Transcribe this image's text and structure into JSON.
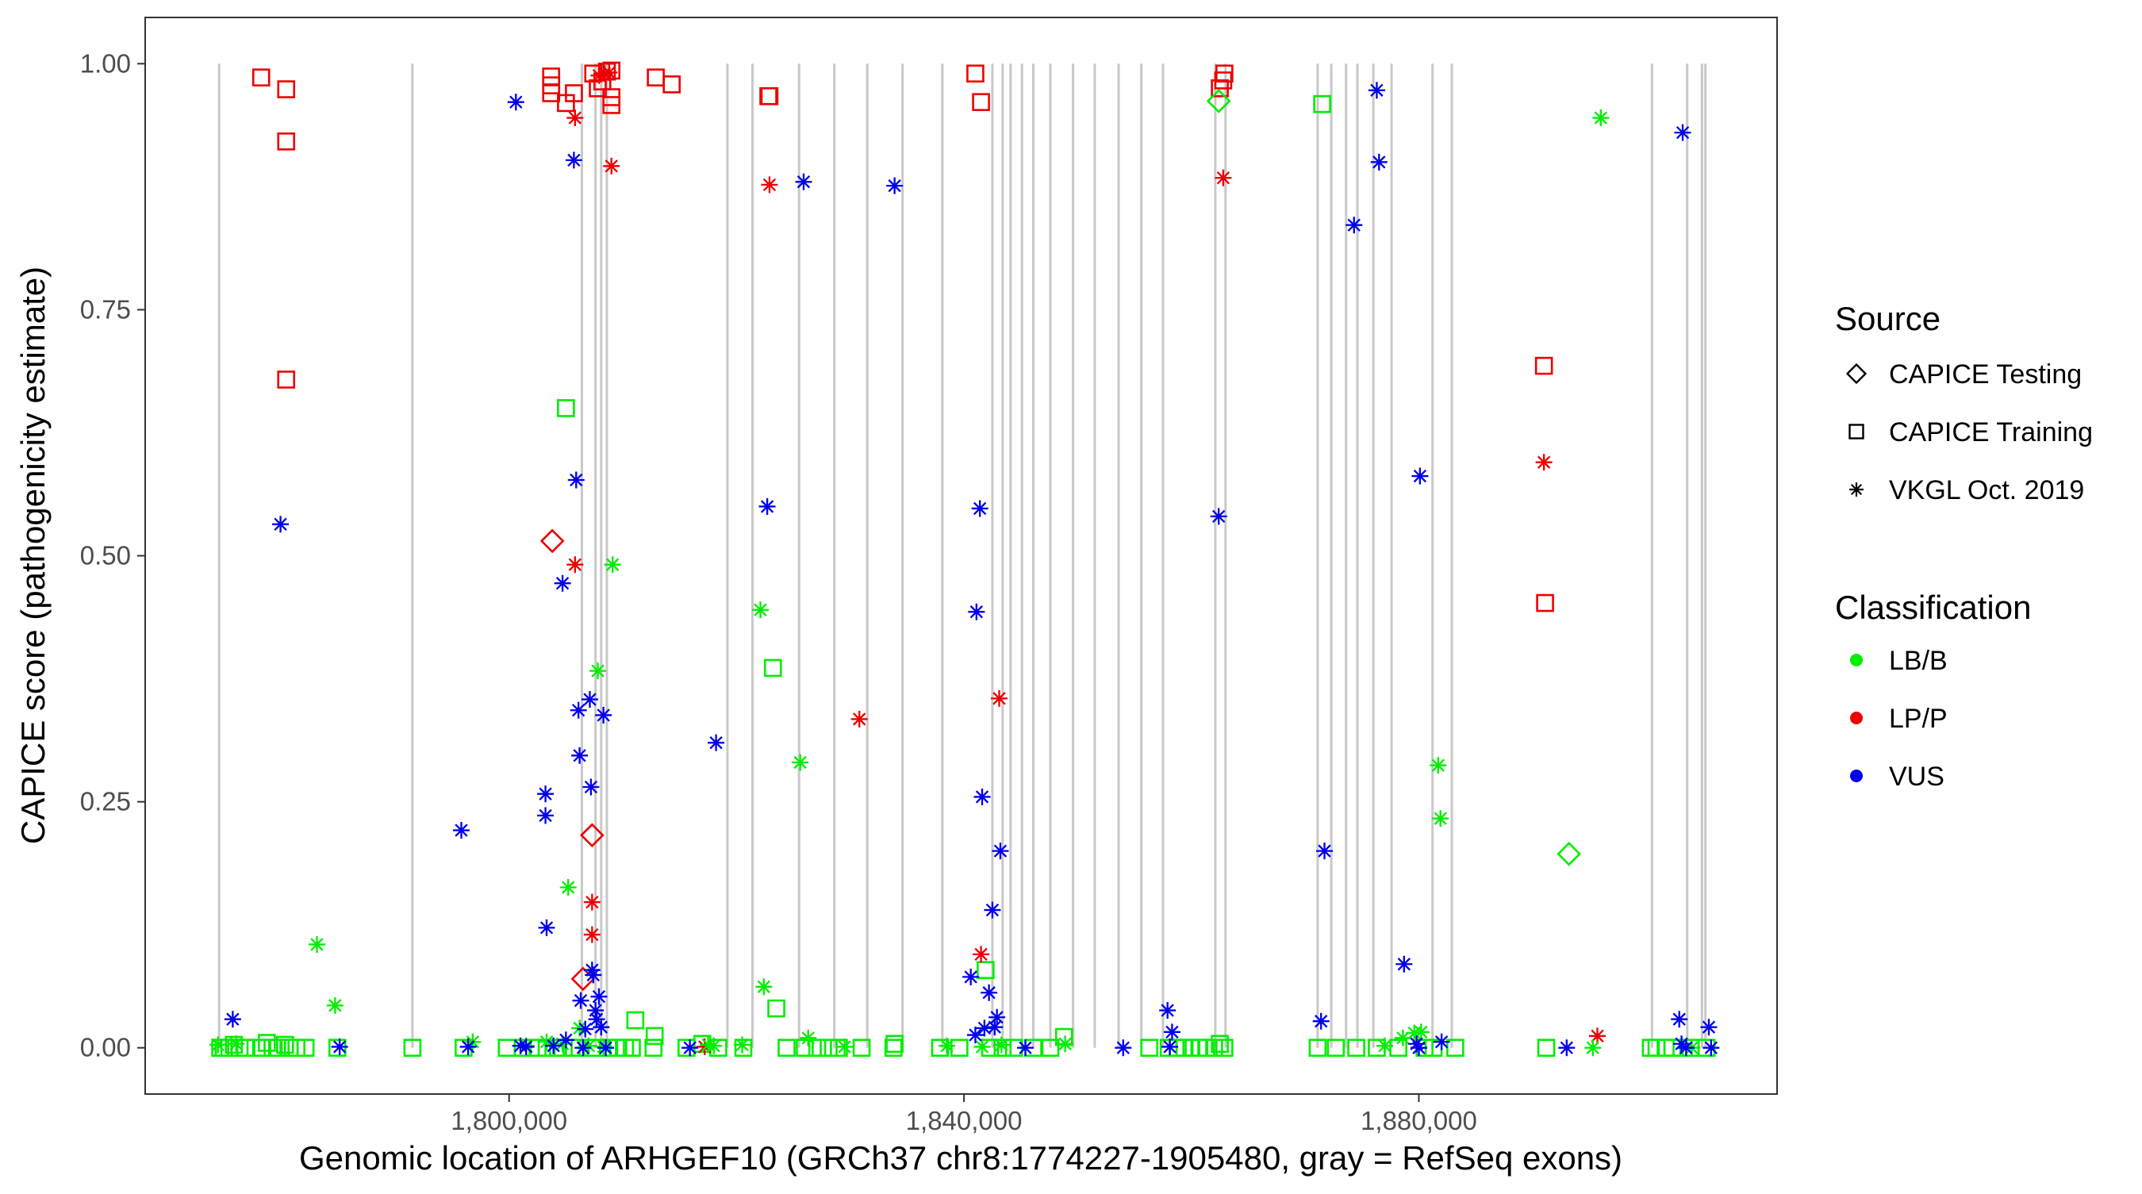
{
  "chart_data": {
    "type": "scatter",
    "title": "",
    "xlabel": "Genomic location of ARHGEF10 (GRCh37 chr8:1774227-1905480, gray = RefSeq exons)",
    "ylabel": "CAPICE score (pathogenicity estimate)",
    "xlim": [
      1768000,
      1911500
    ],
    "ylim": [
      -0.047,
      1.047
    ],
    "x_ticks": [
      1800000,
      1840000,
      1880000
    ],
    "x_tick_labels": [
      "1,800,000",
      "1,840,000",
      "1,880,000"
    ],
    "y_ticks": [
      0.0,
      0.25,
      0.5,
      0.75,
      1.0
    ],
    "y_tick_labels": [
      "0.00",
      "0.25",
      "0.50",
      "0.75",
      "1.00"
    ],
    "grid": false,
    "exon_color": "#c8c8c8",
    "exons": [
      1774500,
      1791500,
      1806400,
      1807600,
      1808100,
      1808600,
      1819200,
      1821400,
      1825500,
      1828600,
      1831500,
      1834600,
      1838100,
      1842500,
      1843400,
      1844100,
      1845100,
      1846100,
      1847600,
      1849600,
      1851500,
      1853600,
      1855600,
      1857500,
      1862100,
      1863000,
      1871100,
      1872300,
      1873600,
      1874600,
      1876000,
      1877600,
      1881200,
      1882900,
      1900500,
      1903600,
      1904900,
      1905200
    ],
    "legend": {
      "placement": "right",
      "source_title": "Source",
      "source_entries": [
        {
          "label": "CAPICE Testing",
          "shape": "diamond"
        },
        {
          "label": "CAPICE Training",
          "shape": "square"
        },
        {
          "label": "VKGL Oct. 2019",
          "shape": "asterisk"
        }
      ],
      "class_title": "Classification",
      "class_entries": [
        {
          "label": "LB/B",
          "color": "#00ee00"
        },
        {
          "label": "LP/P",
          "color": "#ee0000"
        },
        {
          "label": "VUS",
          "color": "#0000ee"
        }
      ]
    },
    "series": [
      {
        "source": "CAPICE Training",
        "shape": "square",
        "classification": "LP/P",
        "color": "#ee0000",
        "points": [
          [
            1778200,
            0.986
          ],
          [
            1780400,
            0.974
          ],
          [
            1780400,
            0.921
          ],
          [
            1780400,
            0.679
          ],
          [
            1803700,
            0.987
          ],
          [
            1803700,
            0.978
          ],
          [
            1803700,
            0.97
          ],
          [
            1805000,
            0.96
          ],
          [
            1805700,
            0.97
          ],
          [
            1807400,
            0.99
          ],
          [
            1807800,
            0.975
          ],
          [
            1808200,
            0.982
          ],
          [
            1808600,
            0.992
          ],
          [
            1809000,
            0.993
          ],
          [
            1809000,
            0.966
          ],
          [
            1809000,
            0.958
          ],
          [
            1812900,
            0.986
          ],
          [
            1814300,
            0.979
          ],
          [
            1822800,
            0.967
          ],
          [
            1822900,
            0.967
          ],
          [
            1841000,
            0.99
          ],
          [
            1841500,
            0.961
          ],
          [
            1862500,
            0.975
          ],
          [
            1862800,
            0.983
          ],
          [
            1862900,
            0.99
          ],
          [
            1891000,
            0.693
          ],
          [
            1891100,
            0.452
          ]
        ]
      },
      {
        "source": "CAPICE Training",
        "shape": "square",
        "classification": "LB/B",
        "color": "#00ee00",
        "points": [
          [
            1774600,
            0.0
          ],
          [
            1774900,
            0.0
          ],
          [
            1775400,
            0.0
          ],
          [
            1775800,
            0.003
          ],
          [
            1776300,
            0.0
          ],
          [
            1776800,
            0.0
          ],
          [
            1778300,
            0.0
          ],
          [
            1778700,
            0.005
          ],
          [
            1779200,
            0.0
          ],
          [
            1779600,
            0.0
          ],
          [
            1780300,
            0.003
          ],
          [
            1780700,
            0.0
          ],
          [
            1781300,
            0.0
          ],
          [
            1782100,
            0.0
          ],
          [
            1784900,
            0.0
          ],
          [
            1791500,
            0.0
          ],
          [
            1796000,
            0.0
          ],
          [
            1799800,
            0.0
          ],
          [
            1801200,
            0.0
          ],
          [
            1802500,
            0.0
          ],
          [
            1803300,
            0.0
          ],
          [
            1804300,
            0.0
          ],
          [
            1805000,
            0.65
          ],
          [
            1805500,
            0.0
          ],
          [
            1806200,
            0.0
          ],
          [
            1807300,
            0.0
          ],
          [
            1808700,
            0.0
          ],
          [
            1809600,
            0.0
          ],
          [
            1810200,
            0.0
          ],
          [
            1810800,
            0.0
          ],
          [
            1811100,
            0.028
          ],
          [
            1812700,
            0.0
          ],
          [
            1812800,
            0.012
          ],
          [
            1815600,
            0.0
          ],
          [
            1817000,
            0.004
          ],
          [
            1818400,
            0.0
          ],
          [
            1820600,
            0.0
          ],
          [
            1823200,
            0.386
          ],
          [
            1823500,
            0.04
          ],
          [
            1824400,
            0.0
          ],
          [
            1826000,
            0.0
          ],
          [
            1827100,
            0.0
          ],
          [
            1828100,
            0.0
          ],
          [
            1829000,
            0.0
          ],
          [
            1831000,
            0.0
          ],
          [
            1833800,
            0.0
          ],
          [
            1833900,
            0.004
          ],
          [
            1837900,
            0.0
          ],
          [
            1839600,
            0.0
          ],
          [
            1841900,
            0.079
          ],
          [
            1842300,
            0.0
          ],
          [
            1843400,
            0.0
          ],
          [
            1844400,
            0.0
          ],
          [
            1846100,
            0.0
          ],
          [
            1847600,
            0.0
          ],
          [
            1848800,
            0.011
          ],
          [
            1856300,
            0.0
          ],
          [
            1858000,
            0.0
          ],
          [
            1858800,
            0.0
          ],
          [
            1859400,
            0.0
          ],
          [
            1860000,
            0.0
          ],
          [
            1860700,
            0.0
          ],
          [
            1861300,
            0.0
          ],
          [
            1862000,
            0.0
          ],
          [
            1862500,
            0.004
          ],
          [
            1862900,
            0.0
          ],
          [
            1871100,
            0.0
          ],
          [
            1871500,
            0.959
          ],
          [
            1872700,
            0.0
          ],
          [
            1874500,
            0.0
          ],
          [
            1876300,
            0.0
          ],
          [
            1878200,
            0.0
          ],
          [
            1880500,
            0.0
          ],
          [
            1881300,
            0.0
          ],
          [
            1883200,
            0.0
          ],
          [
            1891200,
            0.0
          ],
          [
            1900400,
            0.0
          ],
          [
            1900900,
            0.0
          ],
          [
            1901700,
            0.0
          ],
          [
            1902300,
            0.0
          ],
          [
            1903900,
            0.0
          ],
          [
            1905300,
            0.0
          ]
        ]
      },
      {
        "source": "CAPICE Testing",
        "shape": "diamond",
        "classification": "LP/P",
        "color": "#ee0000",
        "points": [
          [
            1803800,
            0.515
          ],
          [
            1806500,
            0.07
          ],
          [
            1807300,
            0.216
          ]
        ]
      },
      {
        "source": "CAPICE Testing",
        "shape": "diamond",
        "classification": "LB/B",
        "color": "#00ee00",
        "points": [
          [
            1862400,
            0.962
          ],
          [
            1893200,
            0.197
          ]
        ]
      },
      {
        "source": "VKGL Oct. 2019",
        "shape": "asterisk",
        "classification": "LP/P",
        "color": "#ee0000",
        "points": [
          [
            1805800,
            0.945
          ],
          [
            1805800,
            0.491
          ],
          [
            1807300,
            0.148
          ],
          [
            1807300,
            0.115
          ],
          [
            1807900,
            0.988
          ],
          [
            1808400,
            0.99
          ],
          [
            1808800,
            0.991
          ],
          [
            1809000,
            0.896
          ],
          [
            1817200,
            0.001
          ],
          [
            1822900,
            0.877
          ],
          [
            1830800,
            0.334
          ],
          [
            1841500,
            0.095
          ],
          [
            1843100,
            0.355
          ],
          [
            1862800,
            0.884
          ],
          [
            1891000,
            0.595
          ],
          [
            1895700,
            0.012
          ]
        ]
      },
      {
        "source": "VKGL Oct. 2019",
        "shape": "asterisk",
        "classification": "LB/B",
        "color": "#00ee00",
        "points": [
          [
            1774400,
            0.003
          ],
          [
            1776000,
            0.004
          ],
          [
            1783100,
            0.105
          ],
          [
            1784700,
            0.043
          ],
          [
            1796800,
            0.006
          ],
          [
            1801500,
            0.002
          ],
          [
            1803300,
            0.006
          ],
          [
            1804700,
            0.004
          ],
          [
            1805200,
            0.163
          ],
          [
            1806200,
            0.02
          ],
          [
            1807000,
            0.002
          ],
          [
            1807800,
            0.383
          ],
          [
            1808300,
            0.001
          ],
          [
            1809100,
            0.491
          ],
          [
            1817500,
            0.003
          ],
          [
            1818000,
            0.002
          ],
          [
            1820500,
            0.003
          ],
          [
            1822100,
            0.445
          ],
          [
            1822400,
            0.062
          ],
          [
            1825600,
            0.29
          ],
          [
            1826300,
            0.01
          ],
          [
            1829500,
            0.001
          ],
          [
            1838500,
            0.002
          ],
          [
            1841600,
            0.001
          ],
          [
            1843300,
            0.003
          ],
          [
            1848900,
            0.004
          ],
          [
            1877000,
            0.002
          ],
          [
            1878600,
            0.01
          ],
          [
            1879600,
            0.015
          ],
          [
            1880200,
            0.016
          ],
          [
            1881700,
            0.287
          ],
          [
            1881900,
            0.233
          ],
          [
            1895300,
            0.0
          ],
          [
            1896000,
            0.945
          ],
          [
            1904000,
            0.0
          ]
        ]
      },
      {
        "source": "VKGL Oct. 2019",
        "shape": "asterisk",
        "classification": "VUS",
        "color": "#0000ee",
        "points": [
          [
            1775700,
            0.029
          ],
          [
            1779900,
            0.532
          ],
          [
            1785100,
            0.001
          ],
          [
            1795800,
            0.221
          ],
          [
            1796400,
            0.001
          ],
          [
            1800600,
            0.961
          ],
          [
            1801000,
            0.002
          ],
          [
            1801500,
            0.001
          ],
          [
            1803200,
            0.258
          ],
          [
            1803200,
            0.236
          ],
          [
            1803300,
            0.122
          ],
          [
            1803900,
            0.002
          ],
          [
            1804700,
            0.472
          ],
          [
            1805000,
            0.008
          ],
          [
            1805700,
            0.902
          ],
          [
            1805900,
            0.577
          ],
          [
            1806100,
            0.343
          ],
          [
            1806200,
            0.297
          ],
          [
            1806300,
            0.048
          ],
          [
            1806500,
            0.0
          ],
          [
            1806700,
            0.019
          ],
          [
            1807100,
            0.354
          ],
          [
            1807200,
            0.265
          ],
          [
            1807300,
            0.079
          ],
          [
            1807400,
            0.074
          ],
          [
            1807600,
            0.038
          ],
          [
            1807700,
            0.029
          ],
          [
            1807900,
            0.052
          ],
          [
            1808100,
            0.021
          ],
          [
            1808300,
            0.338
          ],
          [
            1808500,
            0.0
          ],
          [
            1815900,
            0.0
          ],
          [
            1818200,
            0.31
          ],
          [
            1822700,
            0.55
          ],
          [
            1825900,
            0.88
          ],
          [
            1833900,
            0.876
          ],
          [
            1840600,
            0.072
          ],
          [
            1841000,
            0.013
          ],
          [
            1841100,
            0.443
          ],
          [
            1841400,
            0.548
          ],
          [
            1841600,
            0.255
          ],
          [
            1841800,
            0.02
          ],
          [
            1842200,
            0.056
          ],
          [
            1842500,
            0.14
          ],
          [
            1842700,
            0.021
          ],
          [
            1842900,
            0.031
          ],
          [
            1843200,
            0.2
          ],
          [
            1845400,
            0.0
          ],
          [
            1854000,
            0.0
          ],
          [
            1857900,
            0.038
          ],
          [
            1858100,
            0.001
          ],
          [
            1858300,
            0.016
          ],
          [
            1862400,
            0.54
          ],
          [
            1871400,
            0.027
          ],
          [
            1871700,
            0.2
          ],
          [
            1874300,
            0.836
          ],
          [
            1876300,
            0.973
          ],
          [
            1876500,
            0.9
          ],
          [
            1878700,
            0.085
          ],
          [
            1879800,
            0.004
          ],
          [
            1880000,
            0.0
          ],
          [
            1880100,
            0.581
          ],
          [
            1882000,
            0.006
          ],
          [
            1893000,
            0.0
          ],
          [
            1902900,
            0.029
          ],
          [
            1903100,
            0.004
          ],
          [
            1903200,
            0.93
          ],
          [
            1903500,
            0.0
          ],
          [
            1905500,
            0.021
          ],
          [
            1905700,
            0.0
          ]
        ]
      }
    ]
  }
}
